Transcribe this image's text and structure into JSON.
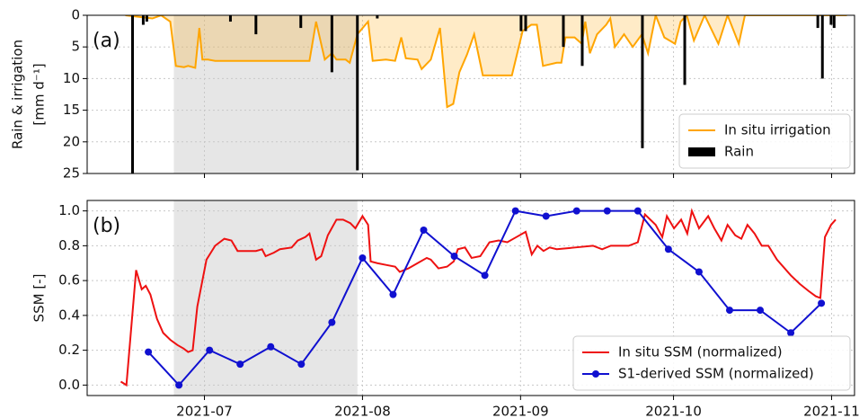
{
  "chart_data": [
    {
      "type": "line",
      "panel_label": "(a)",
      "ylabel": "Rain & irrigation",
      "ylabel_unit": "[mm d⁻¹]",
      "xlim": [
        159,
        309.5
      ],
      "xticks": [
        182,
        213,
        244,
        274,
        305
      ],
      "ylim": [
        0,
        25
      ],
      "y_inverted": true,
      "yticks": [
        0,
        5,
        10,
        15,
        20,
        25
      ],
      "grid": true,
      "legend": "lower right",
      "shade": [
        176,
        212
      ],
      "series": [
        {
          "name": "In situ irrigation",
          "kind": "area",
          "color": "#ffa500",
          "x": [
            166.5,
            171.8,
            173.5,
            175.3,
            176.4,
            178,
            178.8,
            180.2,
            181,
            181.6,
            182.7,
            184.1,
            202.6,
            203.9,
            205.6,
            207,
            207.9,
            209.7,
            210.5,
            212,
            214.1,
            215,
            217.6,
            219.4,
            220.6,
            221.5,
            223.8,
            224.6,
            226.4,
            228.2,
            229.6,
            230.8,
            232,
            233.5,
            234.9,
            236.6,
            242.3,
            244.4,
            246.1,
            247.2,
            248.4,
            251.1,
            252,
            252.8,
            254.6,
            256,
            256.7,
            257.6,
            259,
            260.8,
            261.6,
            262.5,
            264.3,
            266,
            267.8,
            269,
            270.5,
            272.2,
            274.3,
            275.4,
            276.6,
            278,
            280.1,
            282.8,
            284.6,
            286.8,
            288,
            308
          ],
          "values": [
            0,
            0.5,
            0,
            1,
            8,
            8.2,
            8,
            8.3,
            2,
            7,
            7,
            7.2,
            7.2,
            1,
            7,
            6,
            7,
            7,
            7.5,
            3,
            1,
            7.2,
            7,
            7.2,
            3.5,
            6.8,
            7,
            8.5,
            7,
            2,
            14.5,
            14,
            9,
            6.2,
            3,
            9.5,
            9.5,
            2.5,
            1.5,
            1.5,
            8,
            7.5,
            7.5,
            3.5,
            3.5,
            4.5,
            1,
            6,
            3,
            1.5,
            0.5,
            5,
            3,
            5,
            3,
            6,
            0,
            3.5,
            4.5,
            1,
            0,
            4,
            0,
            4.5,
            0,
            4.5,
            0,
            0
          ]
        },
        {
          "name": "Rain",
          "kind": "bar",
          "color": "#000000",
          "x": [
            167.9,
            170,
            170.7,
            187.1,
            192.1,
            200.9,
            207,
            212,
            215.9,
            244.1,
            245,
            252.4,
            256.1,
            267.9,
            276.2,
            302.3,
            303.2,
            304.9,
            305.5
          ],
          "values": [
            25,
            1.5,
            1,
            1,
            3,
            2,
            9,
            24.5,
            0.5,
            2.5,
            2.5,
            5,
            8,
            21,
            11,
            2,
            10,
            1.5,
            2
          ]
        }
      ]
    },
    {
      "type": "line",
      "panel_label": "(b)",
      "ylabel": "SSM [-]",
      "xlim": [
        159,
        309.5
      ],
      "xticks": [
        {
          "value": 182,
          "label": "2021-07"
        },
        {
          "value": 213,
          "label": "2021-08"
        },
        {
          "value": 244,
          "label": "2021-09"
        },
        {
          "value": 274,
          "label": "2021-10"
        },
        {
          "value": 305,
          "label": "2021-11"
        }
      ],
      "ylim": [
        -0.06,
        1.06
      ],
      "yticks": [
        {
          "value": 0,
          "label": "0.0"
        },
        0.2,
        0.4,
        0.6,
        0.8,
        {
          "value": 1,
          "label": "1.0"
        }
      ],
      "grid": true,
      "legend": "lower right",
      "shade": [
        176,
        212
      ],
      "series": [
        {
          "name": "In situ SSM (normalized)",
          "kind": "line",
          "color": "#ee1111",
          "x": [
            165.6,
            166.7,
            168.6,
            169.7,
            170.5,
            171.4,
            172.7,
            173.9,
            175.3,
            176.7,
            177.9,
            178.8,
            179.7,
            180.6,
            182.4,
            184.1,
            185.9,
            187.3,
            188.5,
            190.3,
            192.1,
            193.3,
            194,
            195.6,
            196.8,
            199.1,
            200.3,
            201.8,
            202.6,
            203.9,
            204.9,
            206.2,
            207.9,
            209.2,
            210.6,
            211.6,
            213,
            214.1,
            214.6,
            215.9,
            217.6,
            219.4,
            220.3,
            222,
            223.8,
            225.6,
            226.4,
            227.9,
            229.6,
            230.9,
            231.7,
            233.1,
            234.4,
            236.1,
            237.9,
            239.7,
            241.4,
            243.2,
            245,
            246.2,
            247.3,
            248.5,
            249.7,
            251.1,
            254.7,
            258.2,
            260,
            261.7,
            265.2,
            267,
            268.4,
            270.5,
            271.8,
            272.7,
            274.1,
            275.5,
            276.7,
            277.6,
            279,
            280.8,
            282,
            283.4,
            284.6,
            286.1,
            287.3,
            288.5,
            289.9,
            291.3,
            292.6,
            294.3,
            297,
            298.8,
            300.5,
            301.9,
            302.8,
            303.7,
            304.9,
            305.8
          ],
          "values": [
            0.02,
            0,
            0.66,
            0.55,
            0.57,
            0.52,
            0.38,
            0.3,
            0.26,
            0.23,
            0.21,
            0.19,
            0.2,
            0.45,
            0.72,
            0.8,
            0.84,
            0.83,
            0.77,
            0.77,
            0.77,
            0.78,
            0.74,
            0.76,
            0.78,
            0.79,
            0.83,
            0.85,
            0.87,
            0.72,
            0.74,
            0.86,
            0.95,
            0.95,
            0.93,
            0.9,
            0.97,
            0.92,
            0.71,
            0.7,
            0.69,
            0.68,
            0.65,
            0.67,
            0.7,
            0.73,
            0.72,
            0.67,
            0.68,
            0.71,
            0.78,
            0.79,
            0.73,
            0.74,
            0.82,
            0.83,
            0.82,
            0.85,
            0.88,
            0.75,
            0.8,
            0.77,
            0.79,
            0.78,
            0.79,
            0.8,
            0.78,
            0.8,
            0.8,
            0.82,
            0.98,
            0.92,
            0.85,
            0.97,
            0.9,
            0.95,
            0.87,
            1.0,
            0.9,
            0.97,
            0.9,
            0.83,
            0.92,
            0.86,
            0.84,
            0.92,
            0.87,
            0.8,
            0.8,
            0.72,
            0.63,
            0.58,
            0.54,
            0.51,
            0.5,
            0.85,
            0.92,
            0.95
          ]
        },
        {
          "name": "S1-derived SSM (normalized)",
          "kind": "line",
          "marker": true,
          "color": "#1010d0",
          "x": [
            171,
            177,
            183,
            189,
            195,
            201,
            207,
            213,
            219,
            225,
            231,
            237,
            243,
            249,
            255,
            261,
            267,
            273,
            279,
            285,
            291,
            297,
            303
          ],
          "values": [
            0.19,
            0.0,
            0.2,
            0.12,
            0.22,
            0.12,
            0.36,
            0.73,
            0.52,
            0.89,
            0.74,
            0.63,
            1.0,
            0.97,
            1.0,
            1.0,
            1.0,
            0.78,
            0.65,
            0.43,
            0.43,
            0.3,
            0.47
          ]
        }
      ]
    }
  ]
}
